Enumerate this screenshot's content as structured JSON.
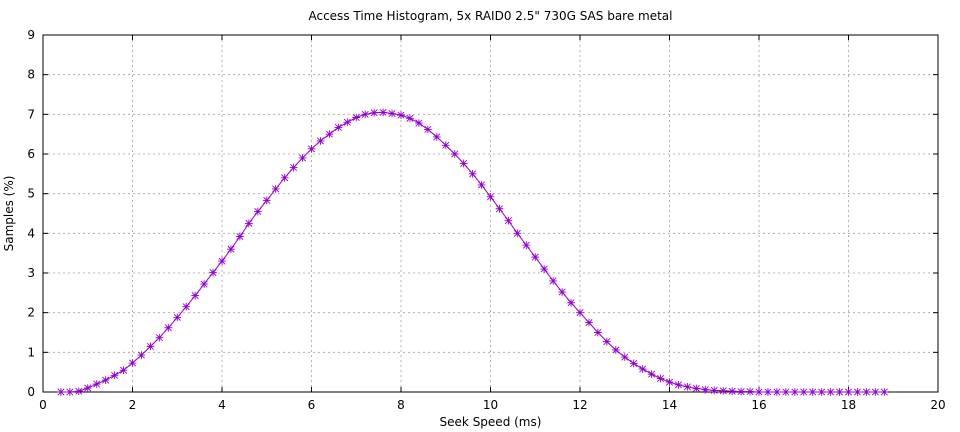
{
  "chart_data": {
    "type": "line",
    "title": "Access Time Histogram, 5x RAID0 2.5\" 730G SAS bare metal",
    "xlabel": "Seek Speed (ms)",
    "ylabel": "Samples (%)",
    "xlim": [
      0,
      20
    ],
    "ylim": [
      0,
      9
    ],
    "xticks": [
      0,
      2,
      4,
      6,
      8,
      10,
      12,
      14,
      16,
      18,
      20
    ],
    "yticks": [
      0,
      1,
      2,
      3,
      4,
      5,
      6,
      7,
      8,
      9
    ],
    "xtick_labels": [
      "0",
      "2",
      "4",
      "6",
      "8",
      "10",
      "12",
      "14",
      "16",
      "18",
      "20"
    ],
    "ytick_labels": [
      "0",
      "1",
      "2",
      "3",
      "4",
      "5",
      "6",
      "7",
      "8",
      "9"
    ],
    "grid": true,
    "marker": "plus-cross",
    "color": "#9400d3",
    "series": [
      {
        "x": [
          0.4,
          0.6,
          0.8,
          1.0,
          1.2,
          1.4,
          1.6,
          1.8,
          2.0,
          2.2,
          2.4,
          2.6,
          2.8,
          3.0,
          3.2,
          3.4,
          3.6,
          3.8,
          4.0,
          4.2,
          4.4,
          4.6,
          4.8,
          5.0,
          5.2,
          5.4,
          5.6,
          5.8,
          6.0,
          6.2,
          6.4,
          6.6,
          6.8,
          7.0,
          7.2,
          7.4,
          7.6,
          7.8,
          8.0,
          8.2,
          8.4,
          8.6,
          8.8,
          9.0,
          9.2,
          9.4,
          9.6,
          9.8,
          10.0,
          10.2,
          10.4,
          10.6,
          10.8,
          11.0,
          11.2,
          11.4,
          11.6,
          11.8,
          12.0,
          12.2,
          12.4,
          12.6,
          12.8,
          13.0,
          13.2,
          13.4,
          13.6,
          13.8,
          14.0,
          14.2,
          14.4,
          14.6,
          14.8,
          15.0,
          15.2,
          15.4,
          15.6,
          15.8,
          16.0,
          16.2,
          16.4,
          16.6,
          16.8,
          17.0,
          17.2,
          17.4,
          17.6,
          17.8,
          18.0,
          18.2,
          18.4,
          18.6,
          18.8
        ],
        "y": [
          0.0,
          0.0,
          0.02,
          0.1,
          0.2,
          0.3,
          0.42,
          0.55,
          0.73,
          0.93,
          1.15,
          1.37,
          1.62,
          1.88,
          2.15,
          2.43,
          2.72,
          3.01,
          3.3,
          3.6,
          3.92,
          4.25,
          4.55,
          4.83,
          5.12,
          5.4,
          5.66,
          5.9,
          6.13,
          6.33,
          6.5,
          6.67,
          6.8,
          6.92,
          7.0,
          7.04,
          7.05,
          7.02,
          6.98,
          6.9,
          6.78,
          6.62,
          6.43,
          6.22,
          6.0,
          5.76,
          5.5,
          5.22,
          4.92,
          4.62,
          4.32,
          4.0,
          3.7,
          3.4,
          3.1,
          2.8,
          2.52,
          2.25,
          2.0,
          1.75,
          1.5,
          1.27,
          1.06,
          0.88,
          0.72,
          0.58,
          0.45,
          0.34,
          0.25,
          0.18,
          0.13,
          0.09,
          0.06,
          0.04,
          0.03,
          0.02,
          0.01,
          0.01,
          0.0,
          0.0,
          0.0,
          0.0,
          0.0,
          0.0,
          0.0,
          0.0,
          0.0,
          0.0,
          0.0,
          0.0,
          0.0,
          0.0,
          0.0
        ]
      }
    ]
  }
}
